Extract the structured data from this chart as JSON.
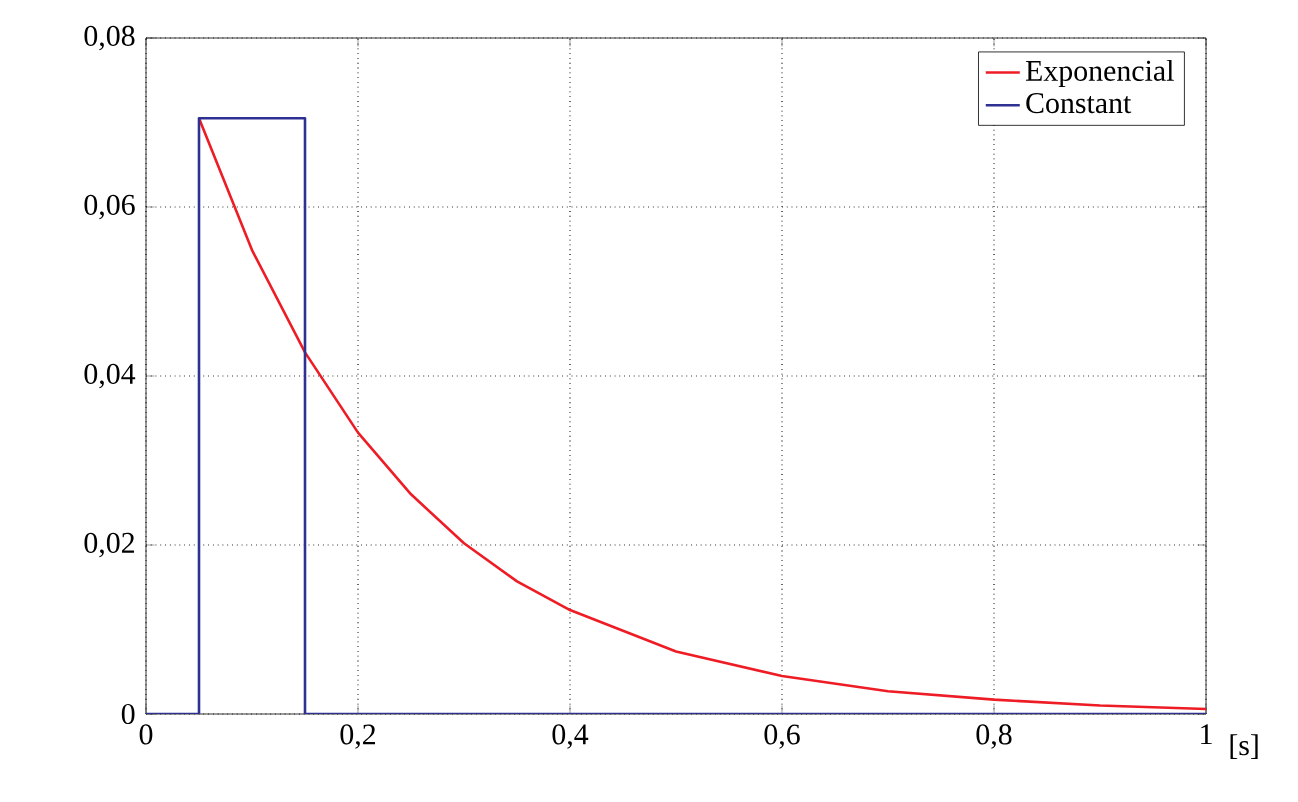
{
  "chart_data": {
    "type": "line",
    "xlabel": "[s]",
    "xlim": [
      0,
      1
    ],
    "ylim": [
      0,
      0.08
    ],
    "xticks": [
      0,
      {
        "value": 0.2,
        "label": "0,2"
      },
      {
        "value": 0.4,
        "label": "0,4"
      },
      {
        "value": 0.6,
        "label": "0,6"
      },
      {
        "value": 0.8,
        "label": "0,8"
      },
      1
    ],
    "yticks": [
      0,
      {
        "value": 0.02,
        "label": "0,02"
      },
      {
        "value": 0.04,
        "label": "0,04"
      },
      {
        "value": 0.06,
        "label": "0,06"
      },
      {
        "value": 0.08,
        "label": "0,08"
      }
    ],
    "grid": true,
    "legend": "top right",
    "marker": "none",
    "line_style": "solid",
    "series": [
      {
        "name": "Exponencial",
        "color": "#ee1c25",
        "x": [
          0.05,
          0.1,
          0.15,
          0.2,
          0.25,
          0.3,
          0.35,
          0.4,
          0.5,
          0.6,
          0.7,
          0.8,
          0.9,
          1.0
        ],
        "values": [
          0.0705,
          0.0549,
          0.0428,
          0.0333,
          0.026,
          0.0202,
          0.0157,
          0.0123,
          0.0074,
          0.0045,
          0.0027,
          0.0017,
          0.001,
          0.0006
        ]
      },
      {
        "name": "Constant",
        "color": "#2e3192",
        "x": [
          0,
          0.05,
          0.05,
          0.15,
          0.15,
          1
        ],
        "values": [
          0,
          0,
          0.0705,
          0.0705,
          0,
          0
        ]
      }
    ]
  }
}
